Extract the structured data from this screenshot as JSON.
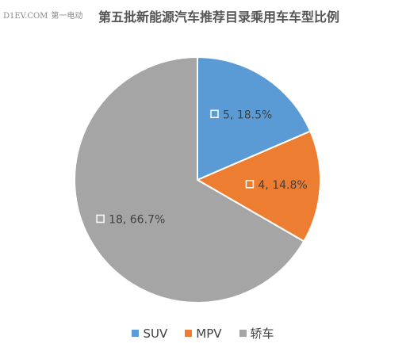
{
  "watermark": {
    "site": "D1EV.COM",
    "label": "第一电动"
  },
  "colors": {
    "SUV": "#5B9BD5",
    "MPV": "#ED7D31",
    "轿车": "#A5A5A5"
  },
  "chart_data": {
    "type": "pie",
    "title": "第五批新能源汽车推荐目录乘用车车型比例",
    "categories": [
      "SUV",
      "MPV",
      "轿车"
    ],
    "values": [
      5,
      4,
      18
    ],
    "data_labels": [
      "5, 18.5%",
      "4, 14.8%",
      "18, 66.7%"
    ],
    "start_angle": "12 o'clock, clockwise",
    "legend": "bottom"
  }
}
